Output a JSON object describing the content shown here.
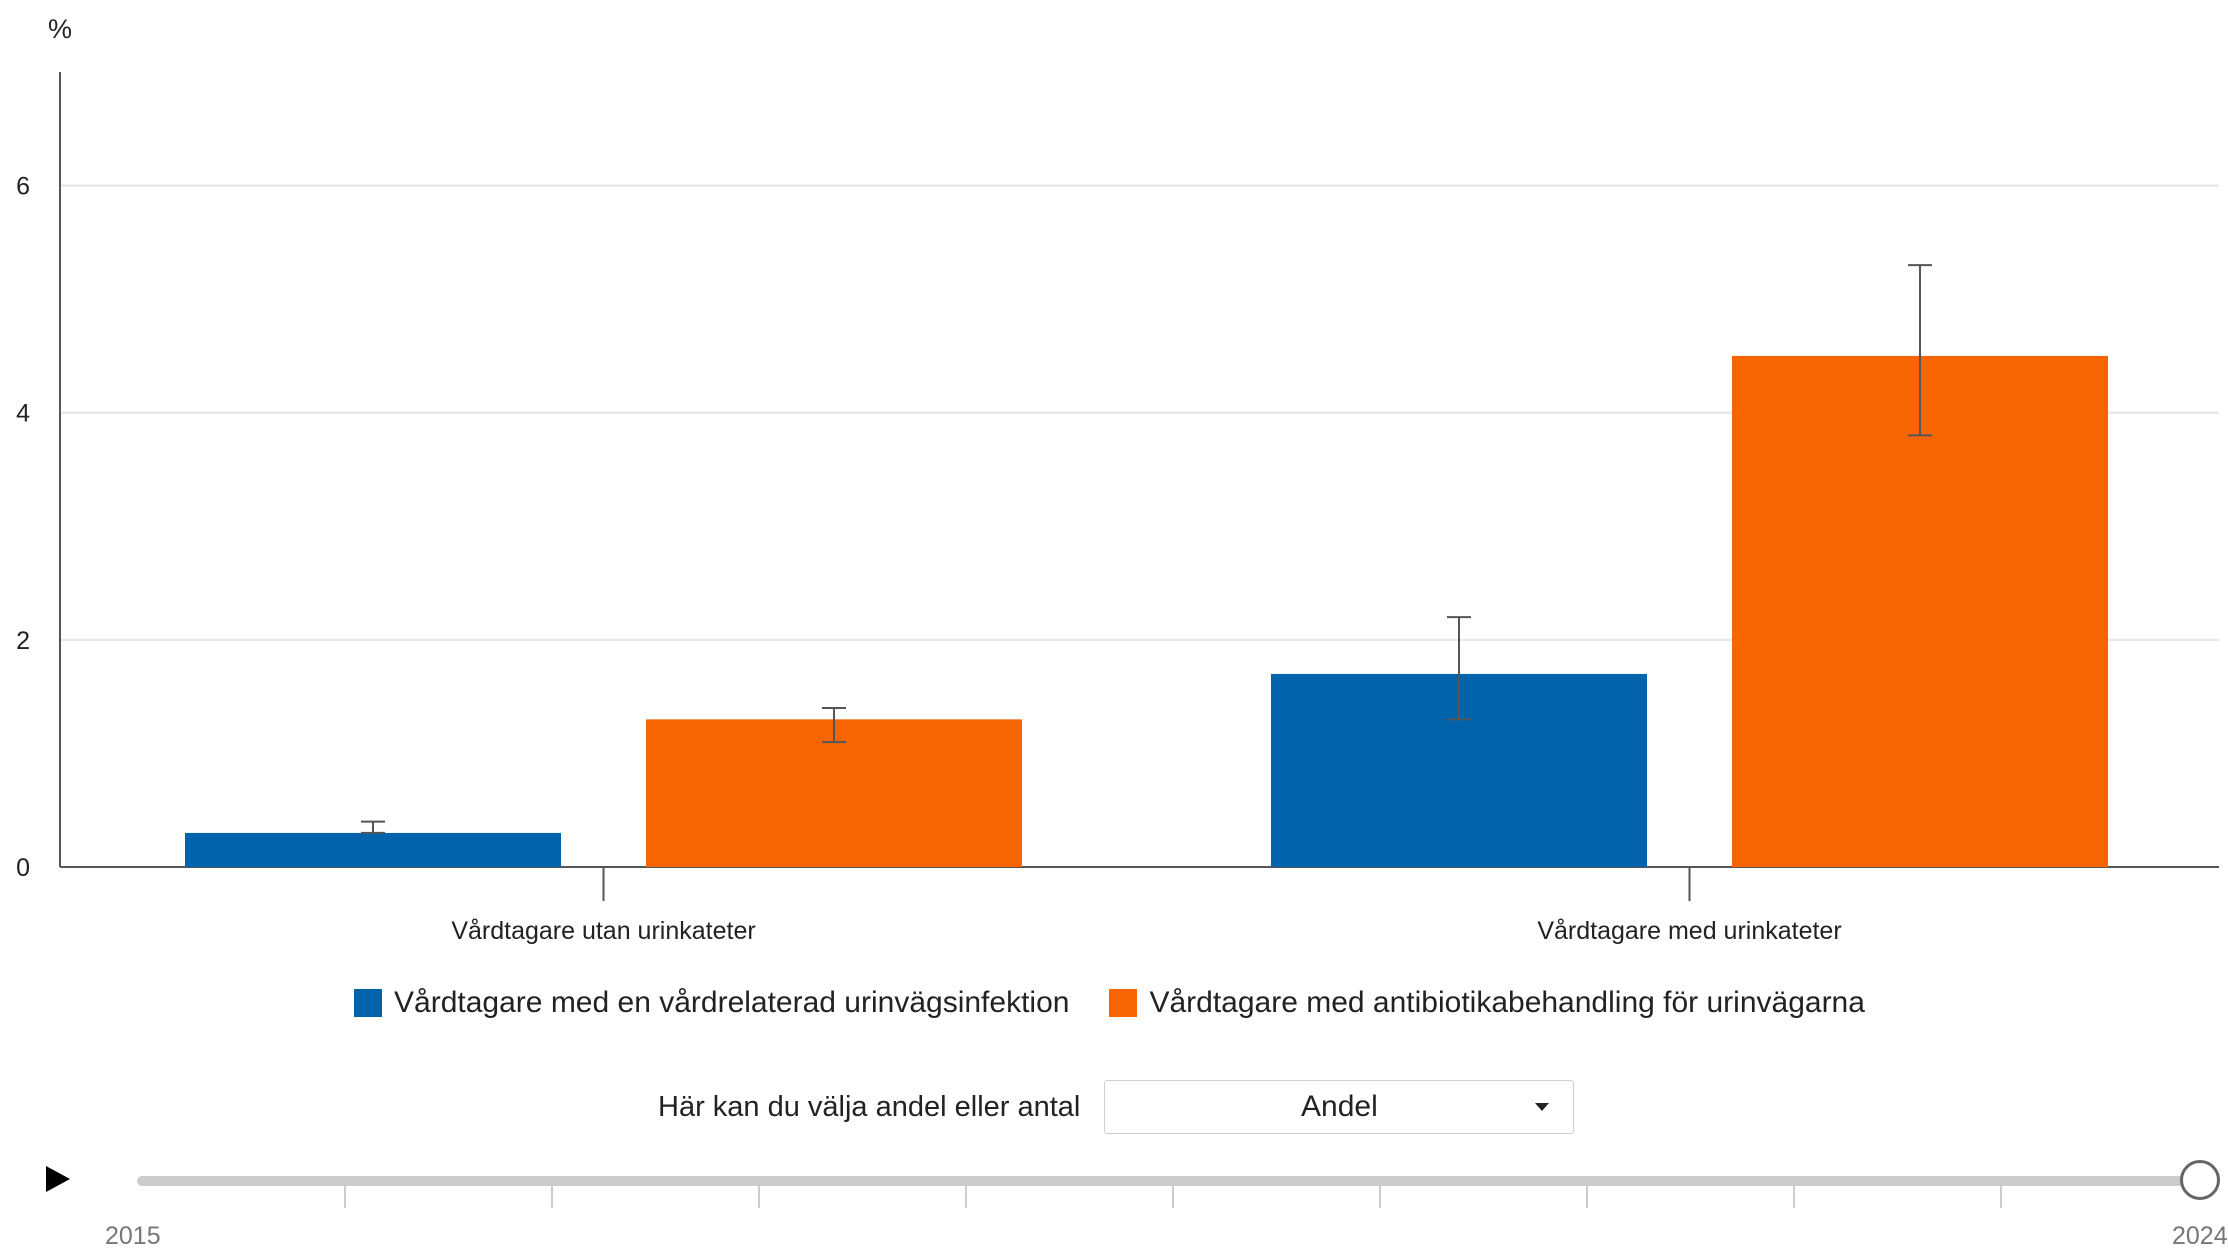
{
  "chart_data": {
    "type": "bar",
    "ylabel": "%",
    "ylim": [
      0,
      7
    ],
    "yticks": [
      0,
      2,
      4,
      6
    ],
    "grid": true,
    "legend_position": "bottom",
    "categories": [
      "Vårdtagare utan urinkateter",
      "Vårdtagare med urinkateter"
    ],
    "series": [
      {
        "name": "Vårdtagare med en vårdrelaterad urinvägsinfektion",
        "color": "#0263ad",
        "values": [
          0.3,
          1.7
        ],
        "error_low": [
          0.3,
          1.3
        ],
        "error_high": [
          0.4,
          2.2
        ]
      },
      {
        "name": "Vårdtagare med antibiotikabehandling för urinvägarna",
        "color": "#f76503",
        "values": [
          1.3,
          4.5
        ],
        "error_low": [
          1.1,
          3.8
        ],
        "error_high": [
          1.4,
          5.3
        ]
      }
    ]
  },
  "controls": {
    "selector_label": "Här kan du välja andel eller antal",
    "selector_value": "Andel",
    "slider_start_label": "2015",
    "slider_end_label": "2024"
  }
}
